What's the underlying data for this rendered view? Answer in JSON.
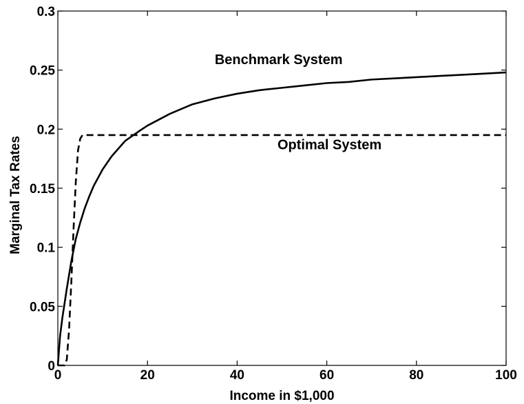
{
  "chart_data": {
    "type": "line",
    "title": "",
    "xlabel": "Income in $1,000",
    "ylabel": "Marginal Tax Rates",
    "xlim": [
      0,
      100
    ],
    "ylim": [
      0,
      0.3
    ],
    "x_ticks": [
      0,
      20,
      40,
      60,
      80,
      100
    ],
    "x_tick_labels": [
      "0",
      "20",
      "40",
      "60",
      "80",
      "100"
    ],
    "y_ticks": [
      0,
      0.05,
      0.1,
      0.15,
      0.2,
      0.25,
      0.3
    ],
    "y_tick_labels": [
      "0",
      "0.05",
      "0.1",
      "0.15",
      "0.2",
      "0.25",
      "0.3"
    ],
    "grid": false,
    "legend": "none",
    "annotations": [
      {
        "text": "Benchmark System",
        "x": 35,
        "y": 0.255
      },
      {
        "text": "Optimal System",
        "x": 49,
        "y": 0.183
      }
    ],
    "series": [
      {
        "style": "solid",
        "color": "#000000",
        "points": [
          [
            0,
            0.0
          ],
          [
            0.5,
            0.025
          ],
          [
            1,
            0.04
          ],
          [
            2,
            0.065
          ],
          [
            3,
            0.088
          ],
          [
            4,
            0.107
          ],
          [
            5,
            0.121
          ],
          [
            6,
            0.133
          ],
          [
            7,
            0.143
          ],
          [
            8,
            0.152
          ],
          [
            10,
            0.166
          ],
          [
            12,
            0.177
          ],
          [
            15,
            0.19
          ],
          [
            18,
            0.198
          ],
          [
            20,
            0.203
          ],
          [
            25,
            0.213
          ],
          [
            30,
            0.221
          ],
          [
            35,
            0.226
          ],
          [
            40,
            0.23
          ],
          [
            45,
            0.233
          ],
          [
            50,
            0.235
          ],
          [
            55,
            0.237
          ],
          [
            60,
            0.239
          ],
          [
            65,
            0.24
          ],
          [
            70,
            0.242
          ],
          [
            75,
            0.243
          ],
          [
            80,
            0.244
          ],
          [
            85,
            0.245
          ],
          [
            90,
            0.246
          ],
          [
            95,
            0.247
          ],
          [
            100,
            0.248
          ]
        ]
      },
      {
        "style": "dashed",
        "color": "#000000",
        "points": [
          [
            0,
            0.0
          ],
          [
            1.5,
            0.0
          ],
          [
            2,
            0.005
          ],
          [
            2.5,
            0.03
          ],
          [
            3,
            0.07
          ],
          [
            3.5,
            0.115
          ],
          [
            4,
            0.155
          ],
          [
            4.5,
            0.182
          ],
          [
            5,
            0.192
          ],
          [
            5.5,
            0.195
          ],
          [
            6,
            0.195
          ],
          [
            10,
            0.195
          ],
          [
            20,
            0.195
          ],
          [
            40,
            0.195
          ],
          [
            60,
            0.195
          ],
          [
            80,
            0.195
          ],
          [
            100,
            0.195
          ]
        ]
      }
    ]
  }
}
